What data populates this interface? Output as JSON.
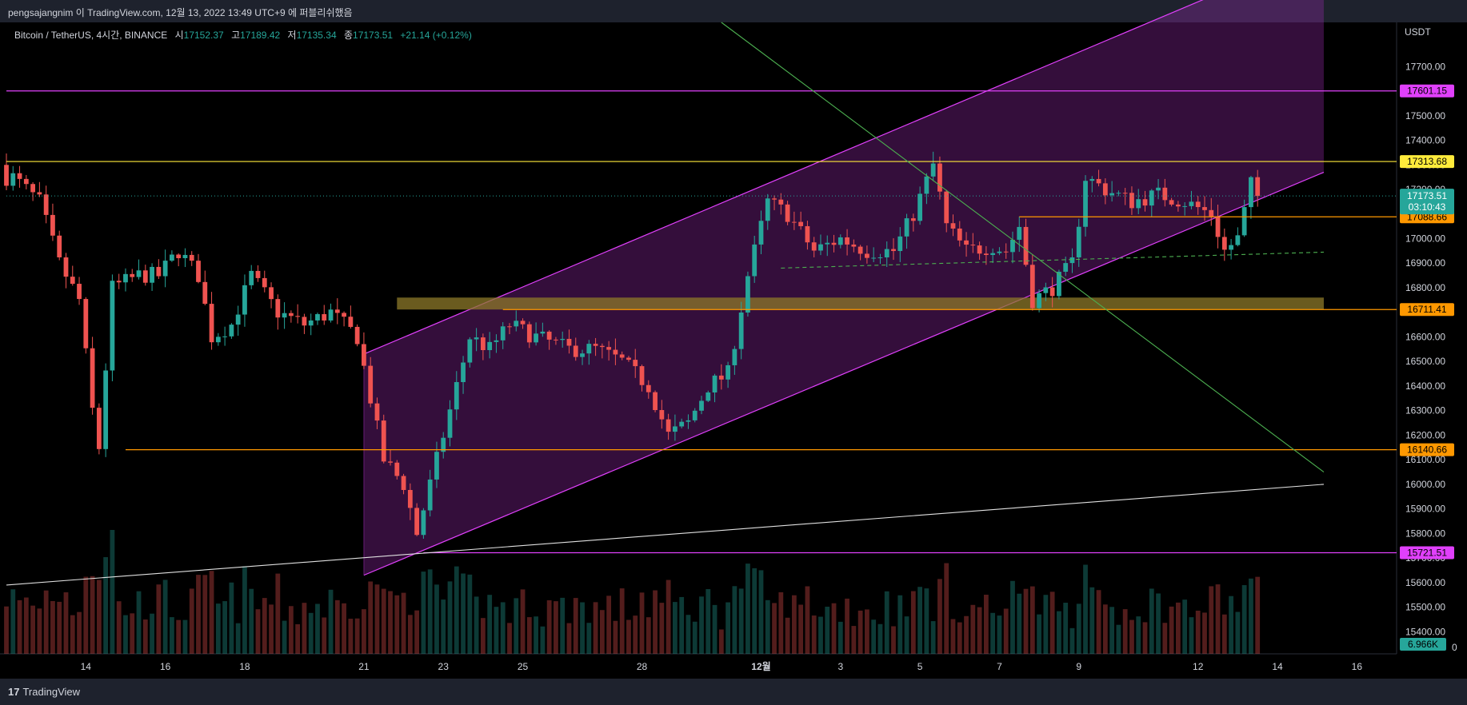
{
  "header": {
    "publisher_line": "pengsajangnim 이 TradingView.com, 12월 13, 2022 13:49 UTC+9 에 퍼블리쉬했음"
  },
  "legend": {
    "symbol": "Bitcoin / TetherUS, 4시간, BINANCE",
    "open_label": "시",
    "open": "17152.37",
    "high_label": "고",
    "high": "17189.42",
    "low_label": "저",
    "low": "17135.34",
    "close_label": "종",
    "close": "17173.51",
    "change": "+21.14 (+0.12%)"
  },
  "footer": {
    "brand": "TradingView",
    "brand_icon": "tradingview-logo-icon"
  },
  "colors": {
    "up": "#26a69a",
    "down": "#ef5350",
    "magenta": "#e040fb",
    "yellow": "#ffeb3b",
    "orange": "#ff9800",
    "green": "#4caf50"
  },
  "chart_data": {
    "type": "candlestick",
    "interval": "4h",
    "currency_label": "USDT",
    "y_ticks": [
      15400,
      15500,
      15600,
      15700,
      15800,
      15900,
      16000,
      16100,
      16200,
      16300,
      16400,
      16500,
      16600,
      16700,
      16800,
      16900,
      17000,
      17100,
      17200,
      17300,
      17400,
      17500,
      17600,
      17700
    ],
    "y_tick_labels": [
      "15400.00",
      "15500.00",
      "15600.00",
      "15700.00",
      "15800.00",
      "15900.00",
      "16000.00",
      "16100.00",
      "16200.00",
      "16300.00",
      "16400.00",
      "16500.00",
      "16600.00",
      "16700.00",
      "16800.00",
      "16900.00",
      "17000.00",
      "17100.00",
      "17200.00",
      "17300.00",
      "17400.00",
      "17500.00",
      "17600.00",
      "17700.00"
    ],
    "ylim": [
      15310,
      17880
    ],
    "x_range": [
      "2022-11-12",
      "2022-12-17"
    ],
    "x_ticks": [
      {
        "date": "2022-11-14",
        "label": "14"
      },
      {
        "date": "2022-11-16",
        "label": "16"
      },
      {
        "date": "2022-11-18",
        "label": "18"
      },
      {
        "date": "2022-11-21",
        "label": "21"
      },
      {
        "date": "2022-11-23",
        "label": "23"
      },
      {
        "date": "2022-11-25",
        "label": "25"
      },
      {
        "date": "2022-11-28",
        "label": "28"
      },
      {
        "date": "2022-12-01",
        "label": "12월"
      },
      {
        "date": "2022-12-03",
        "label": "3"
      },
      {
        "date": "2022-12-05",
        "label": "5"
      },
      {
        "date": "2022-12-07",
        "label": "7"
      },
      {
        "date": "2022-12-09",
        "label": "9"
      },
      {
        "date": "2022-12-12",
        "label": "12"
      },
      {
        "date": "2022-12-14",
        "label": "14"
      },
      {
        "date": "2022-12-16",
        "label": "16"
      }
    ],
    "price_labels": [
      {
        "value": 17601.15,
        "label": "17601.15",
        "color": "#e040fb"
      },
      {
        "value": 17313.68,
        "label": "17313.68",
        "color": "#ffeb3b"
      },
      {
        "value": 17088.66,
        "label": "17088.66",
        "color": "#ff9800"
      },
      {
        "value": 16711.41,
        "label": "16711.41",
        "color": "#ff9800"
      },
      {
        "value": 16140.66,
        "label": "16140.66",
        "color": "#ff9800"
      },
      {
        "value": 15721.51,
        "label": "15721.51",
        "color": "#e040fb"
      }
    ],
    "last_price": {
      "value": 17173.51,
      "label": "17173.51",
      "countdown": "03:10:43"
    },
    "volume_label": "6.966K",
    "volume_zero_label": "0",
    "horizontal_levels": [
      {
        "value": 17601.15,
        "color": "#e040fb",
        "from": "2022-11-12"
      },
      {
        "value": 17313.68,
        "color": "#ffeb3b",
        "from": "2022-11-12"
      },
      {
        "value": 17088.66,
        "color": "#ff9800",
        "from": "2022-12-07T12:00"
      },
      {
        "value": 16711.41,
        "color": "#ff9800",
        "from": "2022-11-24T12:00"
      },
      {
        "value": 16140.66,
        "color": "#ff9800",
        "from": "2022-11-15T00:00"
      },
      {
        "value": 15721.51,
        "color": "#e040fb",
        "from": "2022-11-22T12:00"
      }
    ],
    "zone": {
      "from": "2022-11-21T20:00",
      "to": "2022-12-15T04:00",
      "low": 16711.41,
      "high": 16760,
      "color": "#8d7a2a"
    },
    "channel": {
      "lower": [
        [
          "2022-11-21T00:00",
          15630
        ],
        [
          "2022-12-15T04:00",
          17270
        ]
      ],
      "upper": [
        [
          "2022-11-21T00:00",
          16530
        ],
        [
          "2022-12-15T04:00",
          18180
        ]
      ],
      "fill": "rgba(150,40,170,0.35)"
    },
    "trendlines": [
      {
        "from": [
          "2022-11-12T00:00",
          15590
        ],
        "to": [
          "2022-12-15T04:00",
          16000
        ],
        "color": "#e0e0e0"
      },
      {
        "from": [
          "2022-11-30T00:00",
          17880
        ],
        "to": [
          "2022-12-15T04:00",
          16050
        ],
        "color": "#4caf50"
      },
      {
        "from": [
          "2022-12-01T12:00",
          16880
        ],
        "to": [
          "2022-12-15T04:00",
          16945
        ],
        "color": "#4caf50",
        "dashed": true
      }
    ],
    "volume_scale_max": 7000,
    "candles": []
  }
}
